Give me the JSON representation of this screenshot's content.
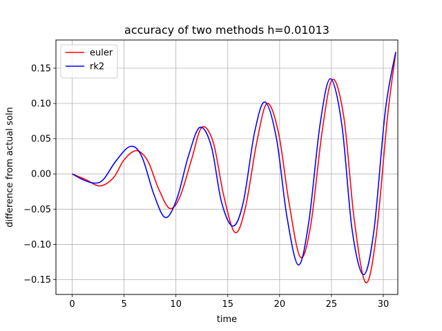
{
  "chart_data": {
    "type": "line",
    "title": "accuracy of two methods h=0.01013",
    "xlabel": "time",
    "ylabel": "difference from actual soln",
    "xlim": [
      -1.57,
      31.4
    ],
    "ylim": [
      -0.171,
      0.19
    ],
    "x_ticks": [
      0,
      5,
      10,
      15,
      20,
      25,
      30
    ],
    "x_tick_labels": [
      "0",
      "5",
      "10",
      "15",
      "20",
      "25",
      "30"
    ],
    "y_ticks": [
      -0.15,
      -0.1,
      -0.05,
      0.0,
      0.05,
      0.1,
      0.15
    ],
    "y_tick_labels": [
      "−0.15",
      "−0.10",
      "−0.05",
      "0.00",
      "0.05",
      "0.10",
      "0.15"
    ],
    "grid": true,
    "legend_position": "top-left",
    "series": [
      {
        "name": "euler",
        "color": "#ff0000",
        "x": [
          0,
          1.3,
          2.7,
          4.0,
          5.0,
          6.2,
          7.3,
          8.3,
          9.4,
          10.4,
          11.5,
          12.5,
          13.6,
          14.6,
          15.7,
          16.7,
          17.8,
          18.8,
          19.9,
          20.9,
          22.0,
          23.0,
          24.1,
          25.1,
          26.2,
          27.2,
          28.3,
          29.3,
          30.4,
          31.2
        ],
        "y": [
          0,
          -0.008,
          -0.017,
          -0.005,
          0.02,
          0.033,
          0.018,
          -0.02,
          -0.049,
          -0.032,
          0.02,
          0.066,
          0.045,
          -0.03,
          -0.083,
          -0.048,
          0.045,
          0.1,
          0.058,
          -0.04,
          -0.118,
          -0.073,
          0.06,
          0.134,
          0.08,
          -0.065,
          -0.154,
          -0.09,
          0.08,
          0.172
        ]
      },
      {
        "name": "rk2",
        "color": "#0000ff",
        "x": [
          0,
          1.0,
          2.1,
          3.0,
          4.2,
          5.6,
          6.7,
          7.9,
          9.0,
          10.1,
          11.2,
          12.3,
          13.4,
          14.4,
          15.5,
          16.5,
          17.6,
          18.6,
          19.7,
          20.7,
          21.8,
          22.8,
          23.9,
          24.9,
          26.0,
          27.0,
          28.1,
          29.1,
          30.2,
          31.2
        ],
        "y": [
          0,
          -0.008,
          -0.013,
          -0.008,
          0.018,
          0.039,
          0.025,
          -0.03,
          -0.062,
          -0.035,
          0.025,
          0.066,
          0.04,
          -0.04,
          -0.074,
          -0.04,
          0.06,
          0.102,
          0.05,
          -0.06,
          -0.129,
          -0.07,
          0.07,
          0.135,
          0.07,
          -0.08,
          -0.143,
          -0.08,
          0.09,
          0.173
        ]
      }
    ]
  }
}
